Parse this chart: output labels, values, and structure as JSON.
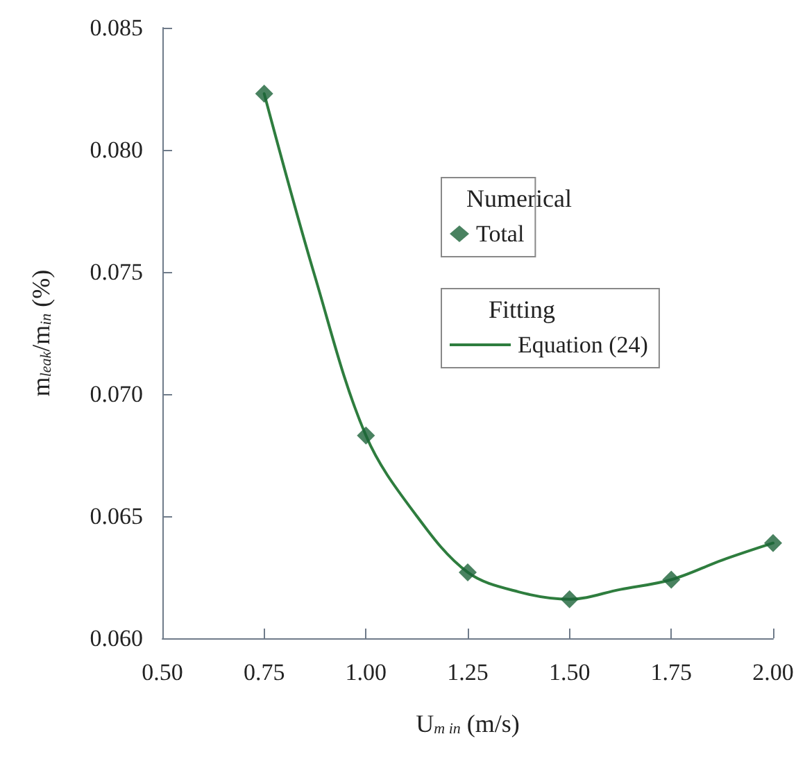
{
  "chart_data": {
    "type": "scatter",
    "xlabel": "U$_{m in}$ (m/s)",
    "ylabel": "m$_{leak}$/m$_{in}$ (%)",
    "xlim": [
      0.5,
      2.0
    ],
    "xticks": [
      {
        "value": 0.5,
        "label": "0.50"
      },
      {
        "value": 0.75,
        "label": "0.75"
      },
      {
        "value": 1.0,
        "label": "1.00"
      },
      {
        "value": 1.25,
        "label": "1.25"
      },
      {
        "value": 1.5,
        "label": "1.50"
      },
      {
        "value": 1.75,
        "label": "1.75"
      },
      {
        "value": 2.0,
        "label": "2.00"
      }
    ],
    "ylim": [
      0.06,
      0.085
    ],
    "yticks": [
      {
        "value": 0.06,
        "label": "0.060"
      },
      {
        "value": 0.065,
        "label": "0.065"
      },
      {
        "value": 0.07,
        "label": "0.070"
      },
      {
        "value": 0.075,
        "label": "0.075"
      },
      {
        "value": 0.08,
        "label": "0.080"
      },
      {
        "value": 0.085,
        "label": "0.085"
      }
    ],
    "series": [
      {
        "name": "Total",
        "color": "#1b6338",
        "marker": "diamond",
        "x": [
          0.75,
          1.0,
          1.25,
          1.5,
          1.75,
          2.0
        ],
        "values": [
          0.0823,
          0.0683,
          0.0627,
          0.0616,
          0.0624,
          0.0639
        ]
      },
      {
        "name": "Equation (24)",
        "type": "line",
        "color": "#2e7d3e",
        "line_style": "solid",
        "marker": "none",
        "x": [
          0.75,
          0.875,
          1.0,
          1.125,
          1.25,
          1.375,
          1.5,
          1.625,
          1.75,
          1.875,
          2.0
        ],
        "values": [
          0.0823,
          0.0748,
          0.0683,
          0.065,
          0.0627,
          0.0619,
          0.0616,
          0.062,
          0.0624,
          0.0632,
          0.0639
        ]
      }
    ],
    "annotations": [
      "Numerical",
      "Fitting"
    ],
    "legend": "center",
    "grid": false
  }
}
